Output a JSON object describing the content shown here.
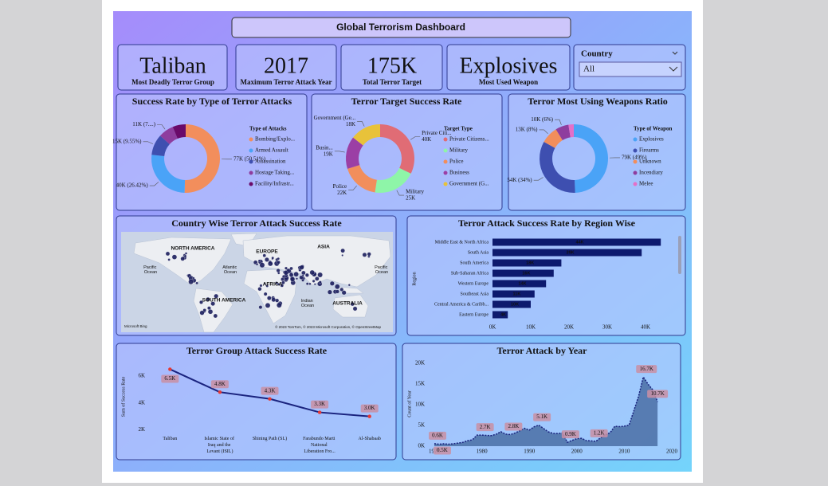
{
  "dashboard_title": "Global Terrorism Dashboard",
  "kpis": [
    {
      "value": "Taliban",
      "label": "Most Deadly Terror Group"
    },
    {
      "value": "2017",
      "label": "Maximum Terror Attack Year"
    },
    {
      "value": "175K",
      "label": "Total Terror Target"
    },
    {
      "value": "Explosives",
      "label": "Most Used Weapon"
    }
  ],
  "slicer": {
    "label": "Country",
    "value": "All"
  },
  "chart_data": [
    {
      "type": "donut",
      "title": "Success Rate by Type of Terror Attacks",
      "legend_title": "Type of Attacks",
      "categories": [
        "Bombing/Explo...",
        "Armed Assault",
        "Assassination",
        "Hostage Taking...",
        "Facility/Infrastr..."
      ],
      "values": [
        77000,
        40000,
        15000,
        11000,
        9400
      ],
      "value_labels": [
        "77K (50.51%)",
        "40K (26.42%)",
        "15K (9.55%)",
        "11K (7....)",
        null
      ],
      "colors": [
        "#f28e5c",
        "#4aa3f7",
        "#3e4fb0",
        "#8e3d9e",
        "#6a0a6a"
      ]
    },
    {
      "type": "donut",
      "title": "Terror Target Success Rate",
      "legend_title": "Target Type",
      "categories": [
        "Private Citizens...",
        "Military",
        "Police",
        "Business",
        "Government (G..."
      ],
      "values": [
        40000,
        25000,
        22000,
        19000,
        18000
      ],
      "label_names": [
        "Private Citi...",
        "Military",
        "Police",
        "Busin...",
        "Government (Ge..."
      ],
      "value_labels": [
        "40K",
        "25K",
        "22K",
        "19K",
        "18K"
      ],
      "colors": [
        "#e06c75",
        "#8ef5a8",
        "#f28e5c",
        "#9b3fa5",
        "#e8c23a"
      ]
    },
    {
      "type": "donut",
      "title": "Terror Most Using Weapons Ratio",
      "legend_title": "Type of Weapon",
      "categories": [
        "Explosives",
        "Firearms",
        "Unknown",
        "Incendiary",
        "Melee"
      ],
      "values": [
        79000,
        54000,
        13000,
        10000,
        4000
      ],
      "value_labels": [
        "79K (49%)",
        "54K (34%)",
        "13K (8%)",
        "10K (6%)",
        null
      ],
      "colors": [
        "#4aa3f7",
        "#3e4fb0",
        "#f28e5c",
        "#8e3d9e",
        "#e46fc8"
      ]
    },
    {
      "type": "map",
      "title": "Country Wise Terror Attack Success Rate",
      "labels": [
        "NORTH AMERICA",
        "EUROPE",
        "ASIA",
        "AFRICA",
        "SOUTH AMERICA",
        "AUSTRALIA",
        "Pacific Ocean",
        "Atlantic Ocean",
        "Indian Ocean",
        "Pacific Ocean"
      ],
      "attribution": "© 2023 TomTom, © 2023 Microsoft Corporation, © OpenStreetMap",
      "logo": "Microsoft Bing",
      "color": "#1c1f5e"
    },
    {
      "type": "hbar",
      "title": "Terror Attack Success Rate by Region Wise",
      "y_label": "Region",
      "categories": [
        "Middle East & North Africa",
        "South Asia",
        "South America",
        "Sub-Saharan Africa",
        "Western Europe",
        "Southeast Asia",
        "Central America & Caribb...",
        "Eastern Europe"
      ],
      "values": [
        44000,
        39000,
        18000,
        16000,
        14000,
        11000,
        10000,
        4000
      ],
      "value_labels": [
        "44K",
        "39K",
        "18K",
        "16K",
        "14K",
        "11K",
        "10K",
        "4K"
      ],
      "color": "#0d1a6e",
      "grid": false,
      "xlim": [
        0,
        48000
      ],
      "xticks": [
        {
          "value": 0,
          "label": "0K"
        },
        {
          "value": 10000,
          "label": "10K"
        },
        {
          "value": 20000,
          "label": "20K"
        },
        {
          "value": 30000,
          "label": "30K"
        },
        {
          "value": 40000,
          "label": "40K"
        }
      ]
    },
    {
      "type": "line",
      "title": "Terror Group Attack Success Rate",
      "y_label": "Sum of Success Rate",
      "categories": [
        "Taliban",
        "Islamic State of Iraq and the Levant (ISIL)",
        "Shining Path (SL)",
        "Farabundo Marti National Liberation Fro...",
        "Al-Shabaab"
      ],
      "values": [
        6500,
        4800,
        4300,
        3300,
        3000
      ],
      "value_labels": [
        "6.5K",
        "4.8K",
        "4.3K",
        "3.3K",
        "3.0K"
      ],
      "color": "#1a237e",
      "marker_color": "#e53935",
      "ylim": [
        1500,
        7000
      ],
      "yticks": [
        {
          "value": 2000,
          "label": "2K"
        },
        {
          "value": 4000,
          "label": "4K"
        },
        {
          "value": 6000,
          "label": "6K"
        }
      ]
    },
    {
      "type": "area",
      "title": "Terror Attack by Year",
      "y_label": "Count of Year",
      "x": [
        1970,
        1971,
        1972,
        1973,
        1974,
        1975,
        1976,
        1977,
        1978,
        1979,
        1980,
        1981,
        1982,
        1983,
        1984,
        1985,
        1986,
        1987,
        1988,
        1989,
        1990,
        1991,
        1992,
        1994,
        1995,
        1996,
        1997,
        1998,
        1999,
        2000,
        2001,
        2002,
        2003,
        2004,
        2005,
        2006,
        2007,
        2008,
        2009,
        2010,
        2011,
        2012,
        2013,
        2014,
        2015,
        2016,
        2017
      ],
      "values": [
        600,
        471,
        568,
        473,
        581,
        740,
        923,
        1319,
        1526,
        2662,
        2662,
        2586,
        2544,
        2870,
        3495,
        2915,
        2800,
        3183,
        3721,
        4324,
        3887,
        4683,
        5071,
        3456,
        3081,
        3058,
        3197,
        934,
        1395,
        1814,
        1906,
        1333,
        1278,
        1166,
        2017,
        2758,
        3242,
        4805,
        4721,
        4826,
        5076,
        8522,
        12036,
        16700,
        14965,
        13587,
        10700
      ],
      "value_labels": [
        "0.6K",
        "0.5K",
        null,
        null,
        null,
        null,
        null,
        null,
        null,
        null,
        "2.7K",
        null,
        null,
        null,
        null,
        null,
        "2.8K",
        null,
        null,
        null,
        null,
        null,
        "5.1K",
        null,
        null,
        null,
        null,
        "0.9K",
        null,
        null,
        null,
        null,
        null,
        "1.2K",
        null,
        null,
        null,
        null,
        null,
        null,
        null,
        null,
        null,
        "16.7K",
        null,
        null,
        "10.7K"
      ],
      "color": "#4a6fa5",
      "line_color": "#1a237e",
      "xlim": [
        1970,
        2020
      ],
      "ylim": [
        0,
        20000
      ],
      "xticks": [
        1970,
        1980,
        1990,
        2000,
        2010,
        2020
      ],
      "yticks": [
        {
          "value": 0,
          "label": "0K"
        },
        {
          "value": 5000,
          "label": "5K"
        },
        {
          "value": 10000,
          "label": "10K"
        },
        {
          "value": 15000,
          "label": "15K"
        },
        {
          "value": 20000,
          "label": "20K"
        }
      ]
    }
  ]
}
